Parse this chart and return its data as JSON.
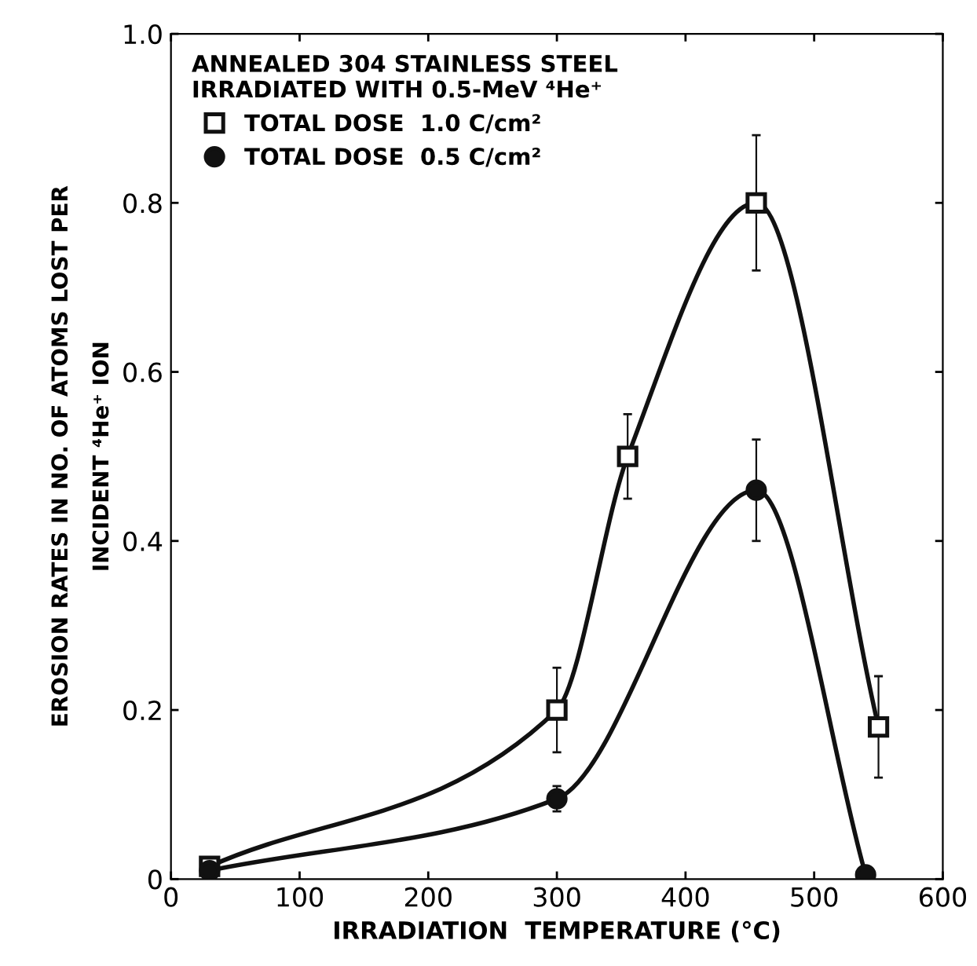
{
  "chart_data": {
    "type": "line",
    "xlabel": "IRRADIATION  TEMPERATURE (°C)",
    "ylabel": "EROSION RATES IN NO. OF ATOMS LOST PER\nINCIDENT ⁴He⁺ ION",
    "legend_title": "ANNEALED 304 STAINLESS STEEL\nIRRADIATED WITH 0.5-MeV ⁴He⁺",
    "legend": "top left",
    "xlim": [
      0,
      600
    ],
    "ylim": [
      0,
      1.0
    ],
    "xticks": [
      0,
      100,
      200,
      300,
      400,
      500,
      600
    ],
    "yticks": [
      {
        "value": 0,
        "label": "0"
      },
      0.2,
      0.4,
      0.6,
      0.8,
      {
        "value": 1.0,
        "label": "1.0"
      }
    ],
    "grid": false,
    "series": [
      {
        "name": "TOTAL DOSE  1.0 C/cm²",
        "color": "#111111",
        "marker": "square",
        "x": [
          30,
          300,
          355,
          455,
          550
        ],
        "values": [
          0.015,
          0.2,
          0.5,
          0.8,
          0.18
        ],
        "errors": [
          null,
          [
            0.15,
            0.25
          ],
          [
            0.45,
            0.55
          ],
          [
            0.72,
            0.88
          ],
          [
            0.12,
            0.24
          ]
        ]
      },
      {
        "name": "TOTAL DOSE  0.5 C/cm²",
        "color": "#111111",
        "marker": "circle",
        "x": [
          30,
          300,
          455,
          540
        ],
        "values": [
          0.01,
          0.095,
          0.46,
          0.005
        ],
        "errors": [
          null,
          [
            0.08,
            0.11
          ],
          [
            0.4,
            0.52
          ],
          null
        ]
      }
    ]
  }
}
